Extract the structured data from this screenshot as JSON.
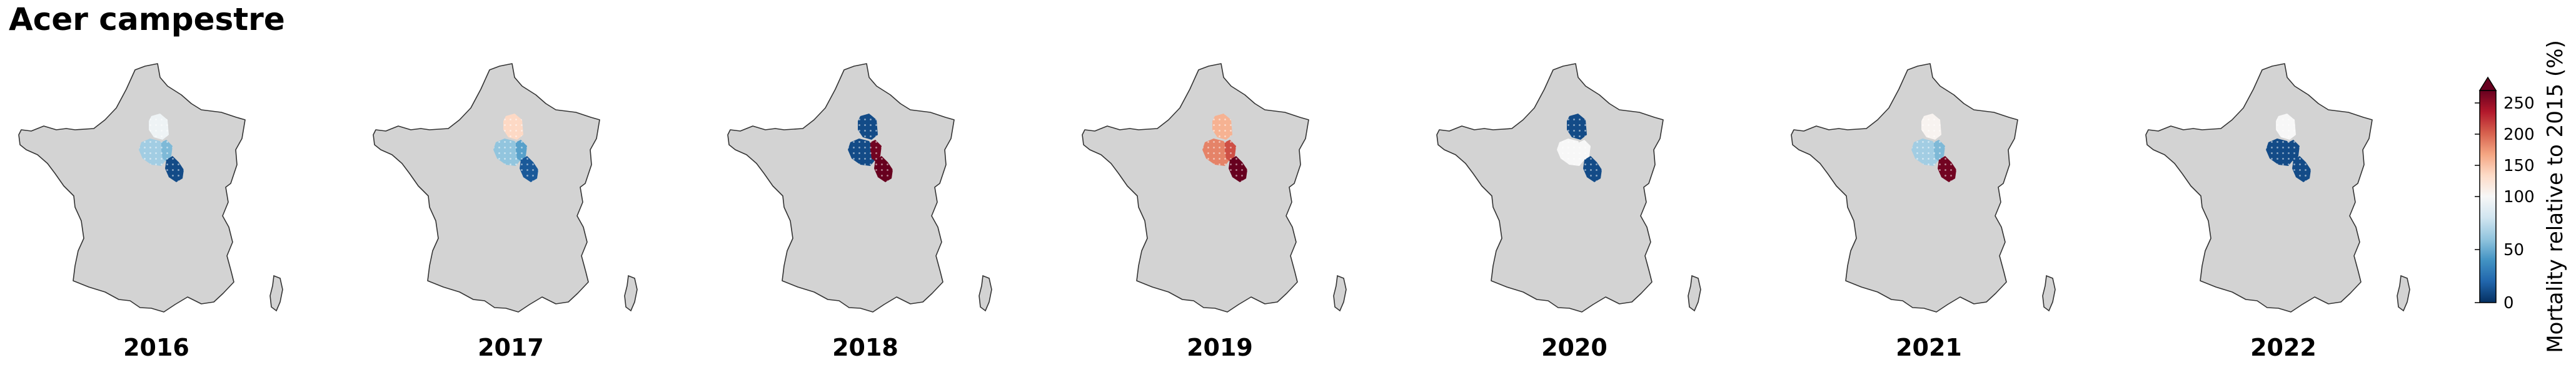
{
  "title": "Acer campestre",
  "region_map": "France",
  "panels": [
    {
      "year": "2016",
      "regions": {
        "north": 95,
        "west": 65,
        "east": 55,
        "southeast": 10
      }
    },
    {
      "year": "2017",
      "regions": {
        "north": 135,
        "west": 60,
        "east": 45,
        "southeast": 15
      }
    },
    {
      "year": "2018",
      "regions": {
        "north": 10,
        "west": 10,
        "east": 265,
        "southeast": 275
      }
    },
    {
      "year": "2019",
      "regions": {
        "north": 160,
        "west": 185,
        "east": 210,
        "southeast": 270
      }
    },
    {
      "year": "2020",
      "regions": {
        "north": 10,
        "west": 100,
        "east": 100,
        "southeast": 10
      }
    },
    {
      "year": "2021",
      "regions": {
        "north": 105,
        "west": 65,
        "east": 55,
        "southeast": 265
      }
    },
    {
      "year": "2022",
      "regions": {
        "north": 100,
        "west": 10,
        "east": 10,
        "southeast": 10
      }
    }
  ],
  "colorbar": {
    "label": "Mortality relative to 2015 (%)",
    "min": 0,
    "center": 100,
    "max": 270,
    "ticks": [
      "0",
      "50",
      "100",
      "150",
      "200",
      "250"
    ],
    "tick_values": [
      0,
      50,
      100,
      150,
      200,
      250
    ],
    "extend": "max",
    "colormap": "RdBu_r",
    "stops": [
      "#053061",
      "#2166ac",
      "#4393c3",
      "#92c5de",
      "#d1e5f0",
      "#f7f7f7",
      "#fddbc7",
      "#f4a582",
      "#d6604d",
      "#b2182b",
      "#67001f"
    ]
  },
  "colors": {
    "land": "#d3d3d3",
    "outline": "#333333"
  }
}
